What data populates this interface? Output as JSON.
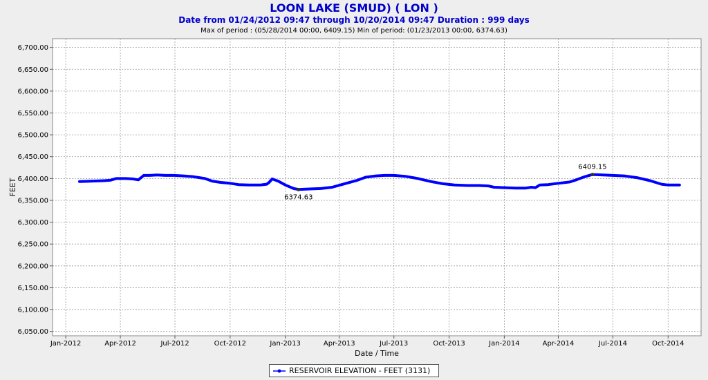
{
  "header": {
    "title": "LOON LAKE (SMUD) ( LON )",
    "subtitle": "Date from 01/24/2012 09:47 through 10/20/2014 09:47 Duration : 999 days",
    "stats": "Max of period : (05/28/2014 00:00, 6409.15)  Min of period: (01/23/2013 00:00,  6374.63)"
  },
  "colors": {
    "series": "#0000ff",
    "title": "#0000cc",
    "plot_bg": "#ffffff",
    "grid": "#999999",
    "page_bg": "#eeeeee"
  },
  "chart_data": {
    "type": "line",
    "xlabel": "Date / Time",
    "ylabel": "FEET",
    "ylim": [
      6040,
      6720
    ],
    "xlim": [
      "2011-12-10",
      "2014-11-25"
    ],
    "grid": true,
    "legend_position": "bottom",
    "x_ticks": [
      {
        "date": "2012-01-01",
        "label": "Jan-2012"
      },
      {
        "date": "2012-04-01",
        "label": "Apr-2012"
      },
      {
        "date": "2012-07-01",
        "label": "Jul-2012"
      },
      {
        "date": "2012-10-01",
        "label": "Oct-2012"
      },
      {
        "date": "2013-01-01",
        "label": "Jan-2013"
      },
      {
        "date": "2013-04-01",
        "label": "Apr-2013"
      },
      {
        "date": "2013-07-01",
        "label": "Jul-2013"
      },
      {
        "date": "2013-10-01",
        "label": "Oct-2013"
      },
      {
        "date": "2014-01-01",
        "label": "Jan-2014"
      },
      {
        "date": "2014-04-01",
        "label": "Apr-2014"
      },
      {
        "date": "2014-07-01",
        "label": "Jul-2014"
      },
      {
        "date": "2014-10-01",
        "label": "Oct-2014"
      }
    ],
    "y_ticks": [
      {
        "value": 6050,
        "label": "6,050.00"
      },
      {
        "value": 6100,
        "label": "6,100.00"
      },
      {
        "value": 6150,
        "label": "6,150.00"
      },
      {
        "value": 6200,
        "label": "6,200.00"
      },
      {
        "value": 6250,
        "label": "6,250.00"
      },
      {
        "value": 6300,
        "label": "6,300.00"
      },
      {
        "value": 6350,
        "label": "6,350.00"
      },
      {
        "value": 6400,
        "label": "6,400.00"
      },
      {
        "value": 6450,
        "label": "6,450.00"
      },
      {
        "value": 6500,
        "label": "6,500.00"
      },
      {
        "value": 6550,
        "label": "6,550.00"
      },
      {
        "value": 6600,
        "label": "6,600.00"
      },
      {
        "value": 6650,
        "label": "6,650.00"
      },
      {
        "value": 6700,
        "label": "6,700.00"
      }
    ],
    "series": [
      {
        "name": "RESERVOIR ELEVATION - FEET (3131)",
        "color": "#0000ff",
        "points": [
          [
            "2012-01-24",
            6393
          ],
          [
            "2012-02-15",
            6394
          ],
          [
            "2012-03-05",
            6395
          ],
          [
            "2012-03-15",
            6396
          ],
          [
            "2012-03-25",
            6400
          ],
          [
            "2012-04-10",
            6400
          ],
          [
            "2012-04-22",
            6399
          ],
          [
            "2012-05-01",
            6397
          ],
          [
            "2012-05-10",
            6407
          ],
          [
            "2012-05-20",
            6407
          ],
          [
            "2012-06-01",
            6408
          ],
          [
            "2012-06-15",
            6407
          ],
          [
            "2012-07-01",
            6407
          ],
          [
            "2012-07-15",
            6406
          ],
          [
            "2012-08-01",
            6404
          ],
          [
            "2012-08-20",
            6400
          ],
          [
            "2012-09-01",
            6394
          ],
          [
            "2012-09-15",
            6391
          ],
          [
            "2012-10-01",
            6389
          ],
          [
            "2012-10-15",
            6386
          ],
          [
            "2012-11-01",
            6385
          ],
          [
            "2012-11-20",
            6385
          ],
          [
            "2012-12-01",
            6387
          ],
          [
            "2012-12-05",
            6391
          ],
          [
            "2012-12-10",
            6399
          ],
          [
            "2012-12-20",
            6394
          ],
          [
            "2013-01-01",
            6385
          ],
          [
            "2013-01-15",
            6377
          ],
          [
            "2013-01-23",
            6375
          ],
          [
            "2013-02-10",
            6376
          ],
          [
            "2013-03-01",
            6377
          ],
          [
            "2013-03-20",
            6380
          ],
          [
            "2013-04-10",
            6388
          ],
          [
            "2013-05-01",
            6396
          ],
          [
            "2013-05-15",
            6403
          ],
          [
            "2013-06-01",
            6406
          ],
          [
            "2013-06-15",
            6407
          ],
          [
            "2013-07-01",
            6407
          ],
          [
            "2013-07-20",
            6405
          ],
          [
            "2013-08-10",
            6400
          ],
          [
            "2013-09-01",
            6393
          ],
          [
            "2013-09-20",
            6388
          ],
          [
            "2013-10-10",
            6385
          ],
          [
            "2013-11-01",
            6384
          ],
          [
            "2013-11-20",
            6384
          ],
          [
            "2013-12-05",
            6383
          ],
          [
            "2013-12-15",
            6380
          ],
          [
            "2014-01-01",
            6379
          ],
          [
            "2014-01-20",
            6378
          ],
          [
            "2014-02-05",
            6378
          ],
          [
            "2014-02-15",
            6380
          ],
          [
            "2014-02-22",
            6379
          ],
          [
            "2014-03-01",
            6385
          ],
          [
            "2014-03-15",
            6386
          ],
          [
            "2014-04-01",
            6389
          ],
          [
            "2014-04-20",
            6392
          ],
          [
            "2014-05-01",
            6397
          ],
          [
            "2014-05-15",
            6404
          ],
          [
            "2014-05-28",
            6409.15
          ],
          [
            "2014-06-15",
            6408
          ],
          [
            "2014-07-01",
            6407
          ],
          [
            "2014-07-20",
            6406
          ],
          [
            "2014-08-10",
            6402
          ],
          [
            "2014-09-01",
            6395
          ],
          [
            "2014-09-20",
            6387
          ],
          [
            "2014-10-01",
            6385
          ],
          [
            "2014-10-20",
            6385
          ]
        ]
      }
    ],
    "annotations": [
      {
        "date": "2014-05-28",
        "value": 6409.15,
        "label": "6409.15",
        "position": "above"
      },
      {
        "date": "2013-01-23",
        "value": 6374.63,
        "label": "6374.63",
        "position": "below"
      }
    ]
  }
}
